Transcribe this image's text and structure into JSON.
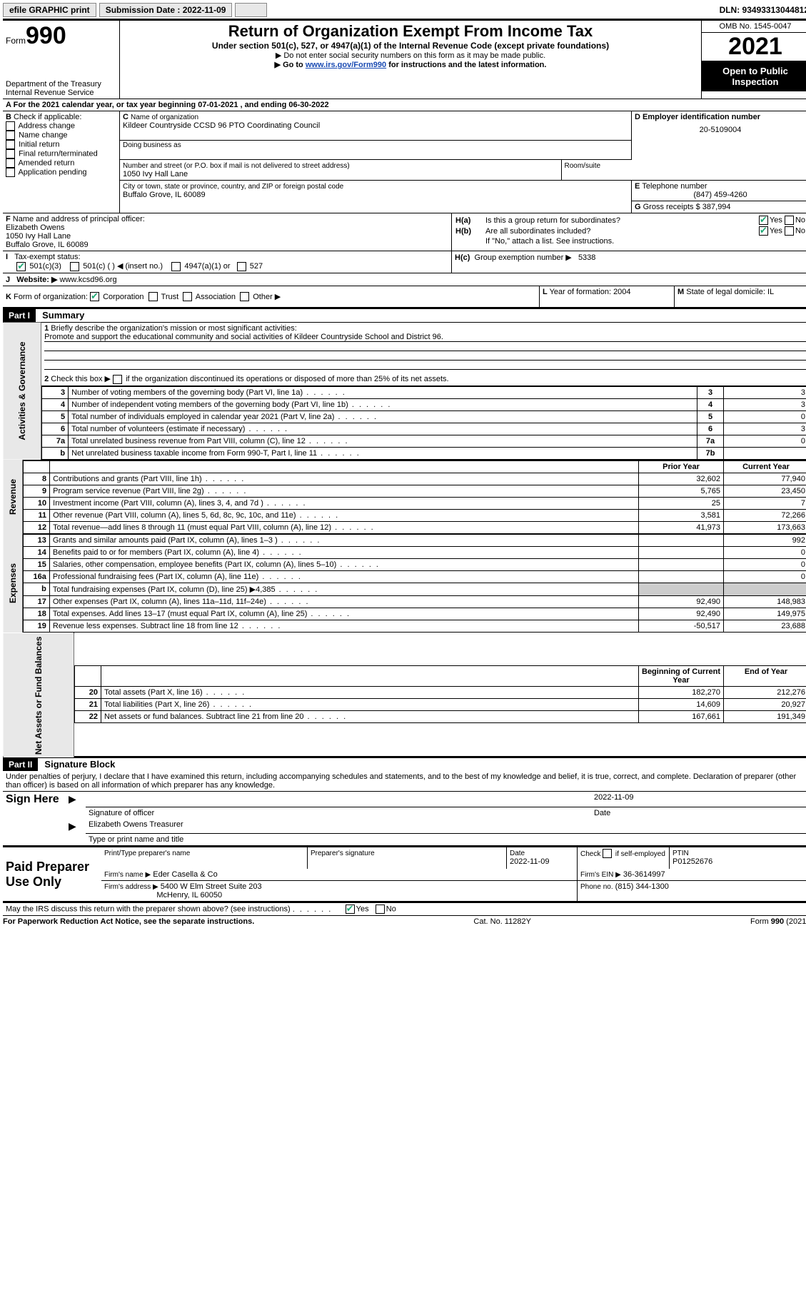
{
  "topbar": {
    "efile": "efile GRAPHIC print",
    "submission_label": "Submission Date : 2022-11-09",
    "dln": "DLN: 93493313044812"
  },
  "header": {
    "form_word": "Form",
    "form_num": "990",
    "dept": "Department of the Treasury",
    "irs": "Internal Revenue Service",
    "title": "Return of Organization Exempt From Income Tax",
    "sub": "Under section 501(c), 527, or 4947(a)(1) of the Internal Revenue Code (except private foundations)",
    "note1": "▶ Do not enter social security numbers on this form as it may be made public.",
    "note2_pre": "▶ Go to ",
    "note2_link": "www.irs.gov/Form990",
    "note2_post": " for instructions and the latest information.",
    "omb": "OMB No. 1545-0047",
    "year": "2021",
    "open": "Open to Public Inspection"
  },
  "A": {
    "text": "For the 2021 calendar year, or tax year beginning 07-01-2021   , and ending 06-30-2022"
  },
  "B": {
    "label": "Check if applicable:",
    "items": [
      "Address change",
      "Name change",
      "Initial return",
      "Final return/terminated",
      "Amended return",
      "Application pending"
    ]
  },
  "C": {
    "name_label": "Name of organization",
    "name": "Kildeer Countryside CCSD 96 PTO Coordinating Council",
    "dba_label": "Doing business as",
    "addr_label": "Number and street (or P.O. box if mail is not delivered to street address)",
    "room_label": "Room/suite",
    "addr": "1050 Ivy Hall Lane",
    "city_label": "City or town, state or province, country, and ZIP or foreign postal code",
    "city": "Buffalo Grove, IL  60089"
  },
  "D": {
    "label": "Employer identification number",
    "val": "20-5109004"
  },
  "E": {
    "label": "Telephone number",
    "val": "(847) 459-4260"
  },
  "G": {
    "label": "Gross receipts $",
    "val": "387,994"
  },
  "F": {
    "label": "Name and address of principal officer:",
    "name": "Elizabeth Owens",
    "addr1": "1050 Ivy Hall Lane",
    "addr2": "Buffalo Grove, IL  60089"
  },
  "H": {
    "a": "Is this a group return for subordinates?",
    "b": "Are all subordinates included?",
    "b_note": "If \"No,\" attach a list. See instructions.",
    "c": "Group exemption number ▶",
    "c_val": "5338",
    "yes": "Yes",
    "no": "No"
  },
  "I": {
    "label": "Tax-exempt status:",
    "opt1": "501(c)(3)",
    "opt2": "501(c) (    ) ◀ (insert no.)",
    "opt3": "4947(a)(1) or",
    "opt4": "527"
  },
  "J": {
    "label": "Website: ▶",
    "val": "www.kcsd96.org"
  },
  "K": {
    "label": "Form of organization:",
    "opts": [
      "Corporation",
      "Trust",
      "Association",
      "Other ▶"
    ]
  },
  "L": {
    "label": "Year of formation:",
    "val": "2004"
  },
  "M": {
    "label": "State of legal domicile:",
    "val": "IL"
  },
  "part1": {
    "hdr": "Part I",
    "title": "Summary",
    "q1": "Briefly describe the organization's mission or most significant activities:",
    "q1_ans": "Promote and support the educational community and social activities of Kildeer Countryside School and District 96.",
    "q2": "Check this box ▶        if the organization discontinued its operations or disposed of more than 25% of its net assets.",
    "rows_gov": [
      {
        "n": "3",
        "t": "Number of voting members of the governing body (Part VI, line 1a)",
        "box": "3",
        "v": "3"
      },
      {
        "n": "4",
        "t": "Number of independent voting members of the governing body (Part VI, line 1b)",
        "box": "4",
        "v": "3"
      },
      {
        "n": "5",
        "t": "Total number of individuals employed in calendar year 2021 (Part V, line 2a)",
        "box": "5",
        "v": "0"
      },
      {
        "n": "6",
        "t": "Total number of volunteers (estimate if necessary)",
        "box": "6",
        "v": "3"
      },
      {
        "n": "7a",
        "t": "Total unrelated business revenue from Part VIII, column (C), line 12",
        "box": "7a",
        "v": "0"
      },
      {
        "n": "b",
        "t": "Net unrelated business taxable income from Form 990-T, Part I, line 11",
        "box": "7b",
        "v": ""
      }
    ],
    "col_prior": "Prior Year",
    "col_current": "Current Year",
    "rows_rev": [
      {
        "n": "8",
        "t": "Contributions and grants (Part VIII, line 1h)",
        "p": "32,602",
        "c": "77,940"
      },
      {
        "n": "9",
        "t": "Program service revenue (Part VIII, line 2g)",
        "p": "5,765",
        "c": "23,450"
      },
      {
        "n": "10",
        "t": "Investment income (Part VIII, column (A), lines 3, 4, and 7d )",
        "p": "25",
        "c": "7"
      },
      {
        "n": "11",
        "t": "Other revenue (Part VIII, column (A), lines 5, 6d, 8c, 9c, 10c, and 11e)",
        "p": "3,581",
        "c": "72,266"
      },
      {
        "n": "12",
        "t": "Total revenue—add lines 8 through 11 (must equal Part VIII, column (A), line 12)",
        "p": "41,973",
        "c": "173,663"
      }
    ],
    "rows_exp": [
      {
        "n": "13",
        "t": "Grants and similar amounts paid (Part IX, column (A), lines 1–3 )",
        "p": "",
        "c": "992"
      },
      {
        "n": "14",
        "t": "Benefits paid to or for members (Part IX, column (A), line 4)",
        "p": "",
        "c": "0"
      },
      {
        "n": "15",
        "t": "Salaries, other compensation, employee benefits (Part IX, column (A), lines 5–10)",
        "p": "",
        "c": "0"
      },
      {
        "n": "16a",
        "t": "Professional fundraising fees (Part IX, column (A), line 11e)",
        "p": "",
        "c": "0"
      },
      {
        "n": "b",
        "t": "Total fundraising expenses (Part IX, column (D), line 25) ▶4,385",
        "p": "gray",
        "c": "gray"
      },
      {
        "n": "17",
        "t": "Other expenses (Part IX, column (A), lines 11a–11d, 11f–24e)",
        "p": "92,490",
        "c": "148,983"
      },
      {
        "n": "18",
        "t": "Total expenses. Add lines 13–17 (must equal Part IX, column (A), line 25)",
        "p": "92,490",
        "c": "149,975"
      },
      {
        "n": "19",
        "t": "Revenue less expenses. Subtract line 18 from line 12",
        "p": "-50,517",
        "c": "23,688"
      }
    ],
    "col_begin": "Beginning of Current Year",
    "col_end": "End of Year",
    "rows_net": [
      {
        "n": "20",
        "t": "Total assets (Part X, line 16)",
        "p": "182,270",
        "c": "212,276"
      },
      {
        "n": "21",
        "t": "Total liabilities (Part X, line 26)",
        "p": "14,609",
        "c": "20,927"
      },
      {
        "n": "22",
        "t": "Net assets or fund balances. Subtract line 21 from line 20",
        "p": "167,661",
        "c": "191,349"
      }
    ],
    "vlabels": {
      "gov": "Activities & Governance",
      "rev": "Revenue",
      "exp": "Expenses",
      "net": "Net Assets or Fund Balances"
    }
  },
  "part2": {
    "hdr": "Part II",
    "title": "Signature Block",
    "decl": "Under penalties of perjury, I declare that I have examined this return, including accompanying schedules and statements, and to the best of my knowledge and belief, it is true, correct, and complete. Declaration of preparer (other than officer) is based on all information of which preparer has any knowledge."
  },
  "sign": {
    "here": "Sign Here",
    "sig_officer": "Signature of officer",
    "date": "Date",
    "date_val": "2022-11-09",
    "name": "Elizabeth Owens Treasurer",
    "name_label": "Type or print name and title"
  },
  "paid": {
    "title": "Paid Preparer Use Only",
    "col1": "Print/Type preparer's name",
    "col2": "Preparer's signature",
    "col3": "Date",
    "col3_val": "2022-11-09",
    "col4": "Check        if self-employed",
    "col5": "PTIN",
    "col5_val": "P01252676",
    "firm_name_l": "Firm's name    ▶",
    "firm_name": "Eder Casella & Co",
    "firm_ein_l": "Firm's EIN ▶",
    "firm_ein": "36-3614997",
    "firm_addr_l": "Firm's address ▶",
    "firm_addr": "5400 W Elm Street Suite 203",
    "firm_city": "McHenry, IL  60050",
    "phone_l": "Phone no.",
    "phone": "(815) 344-1300"
  },
  "bottom": {
    "q": "May the IRS discuss this return with the preparer shown above? (see instructions)",
    "yes": "Yes",
    "no": "No"
  },
  "footer": {
    "left": "For Paperwork Reduction Act Notice, see the separate instructions.",
    "mid": "Cat. No. 11282Y",
    "right": "Form 990 (2021)"
  }
}
